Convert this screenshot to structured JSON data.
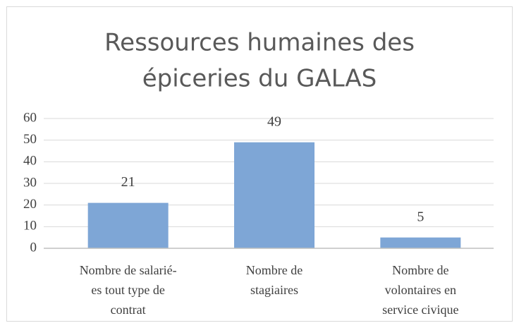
{
  "chart_data": {
    "type": "bar",
    "title": [
      "Ressources humaines des",
      "épiceries du GALAS"
    ],
    "categories": [
      [
        "Nombre de salarié-",
        "es tout type de",
        "contrat"
      ],
      [
        "Nombre de",
        "stagiaires"
      ],
      [
        "Nombre de",
        "volontaires en",
        "service civique"
      ]
    ],
    "values": [
      21,
      49,
      5
    ],
    "color": "#7ea6d6",
    "ylim": [
      0,
      60
    ],
    "yticks": [
      0,
      10,
      20,
      30,
      40,
      50,
      60
    ],
    "grid": true
  }
}
